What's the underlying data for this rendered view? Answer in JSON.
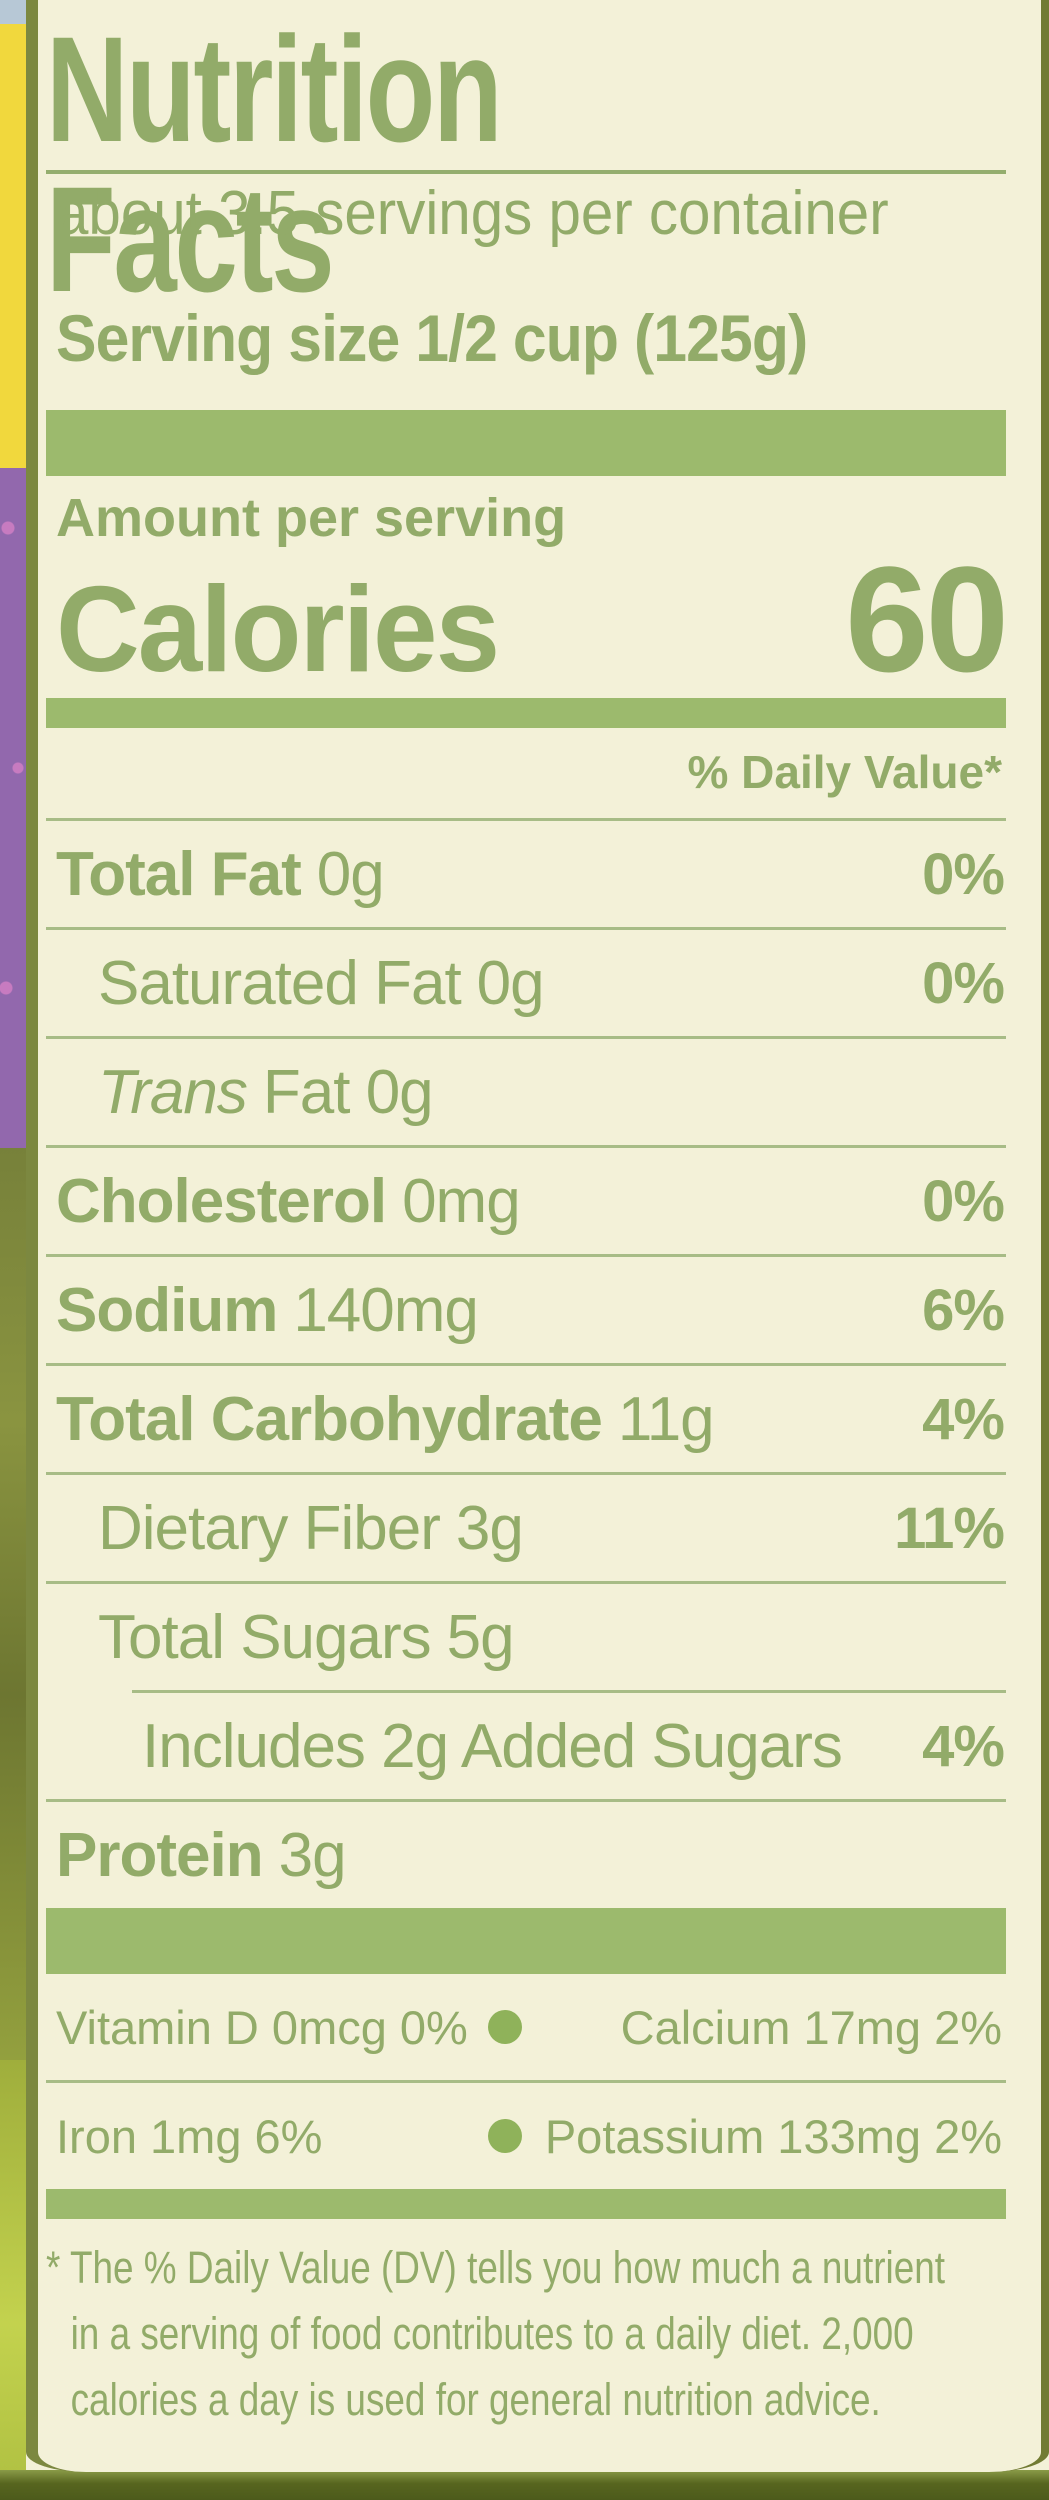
{
  "label": {
    "title": "Nutrition Facts",
    "servings_per_container": "about 3.5 servings per container",
    "serving_size": "Serving size 1/2 cup (125g)",
    "amount_per_serving": "Amount per serving",
    "calories_label": "Calories",
    "calories_value": "60",
    "daily_value_header": "% Daily Value*",
    "rows": [
      {
        "name": "Total Fat",
        "amount": "0g",
        "percent": "0%"
      },
      {
        "name": "Saturated Fat",
        "amount": "0g",
        "percent": "0%"
      },
      {
        "name": "Trans",
        "amount": "Fat 0g",
        "percent": ""
      },
      {
        "name": "Cholesterol",
        "amount": "0mg",
        "percent": "0%"
      },
      {
        "name": "Sodium",
        "amount": "140mg",
        "percent": "6%"
      },
      {
        "name": "Total Carbohydrate",
        "amount": "11g",
        "percent": "4%"
      },
      {
        "name": "Dietary Fiber",
        "amount": "3g",
        "percent": "11%"
      },
      {
        "name": "Total Sugars",
        "amount": "5g",
        "percent": ""
      },
      {
        "name": "Includes 2g Added Sugars",
        "amount": "",
        "percent": "4%"
      },
      {
        "name": "Protein",
        "amount": "3g",
        "percent": ""
      }
    ],
    "micronutrients": [
      {
        "left": "Vitamin D 0mcg 0%",
        "right": "Calcium 17mg 2%"
      },
      {
        "left": "Iron 1mg 6%",
        "right": "Potassium 133mg 2%"
      }
    ],
    "footnote_lines": [
      "* The % Daily Value (DV) tells you how much a nutrient",
      "in a serving of food contributes to a daily diet. 2,000",
      "calories a day is used for general nutrition advice."
    ]
  },
  "colors": {
    "text_green": "#92ab69",
    "bar_green": "#9cba6d",
    "hairline_green": "#a7bc86",
    "label_cream": "#f3f1d8",
    "strip_yellow": "#f1d83d",
    "strip_purple": "#9268ad",
    "strip_olive": "#77813a",
    "strip_lime": "#b5c747",
    "edge_olive": "#7c8840",
    "bottom_olive": "#57651f",
    "corner_blue": "#b7c8d6"
  }
}
